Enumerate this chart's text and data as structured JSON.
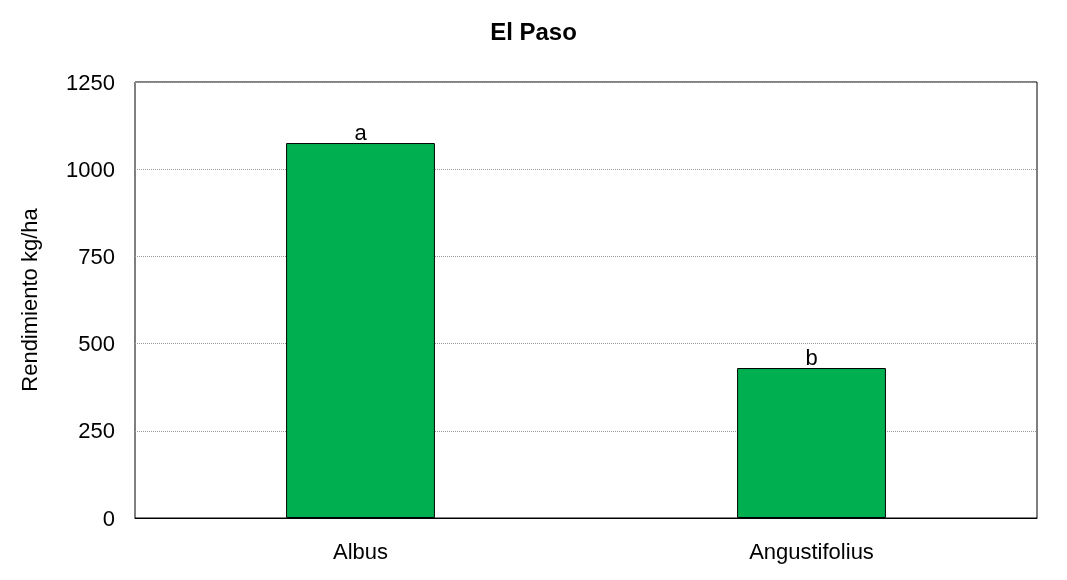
{
  "chart_data": {
    "type": "bar",
    "title": "El Paso",
    "ylabel": "Rendimiento kg/ha",
    "categories": [
      "Albus",
      "Angustifolius"
    ],
    "values": [
      1075,
      430
    ],
    "color": "#00b050",
    "ylim": [
      0,
      1250
    ],
    "yticks": [
      0,
      250,
      500,
      750,
      1000,
      1250
    ],
    "grid": "y",
    "annotations": [
      {
        "text": "a",
        "x": "Albus",
        "y": 1075
      },
      {
        "text": "b",
        "x": "Angustifolius",
        "y": 430
      }
    ]
  }
}
